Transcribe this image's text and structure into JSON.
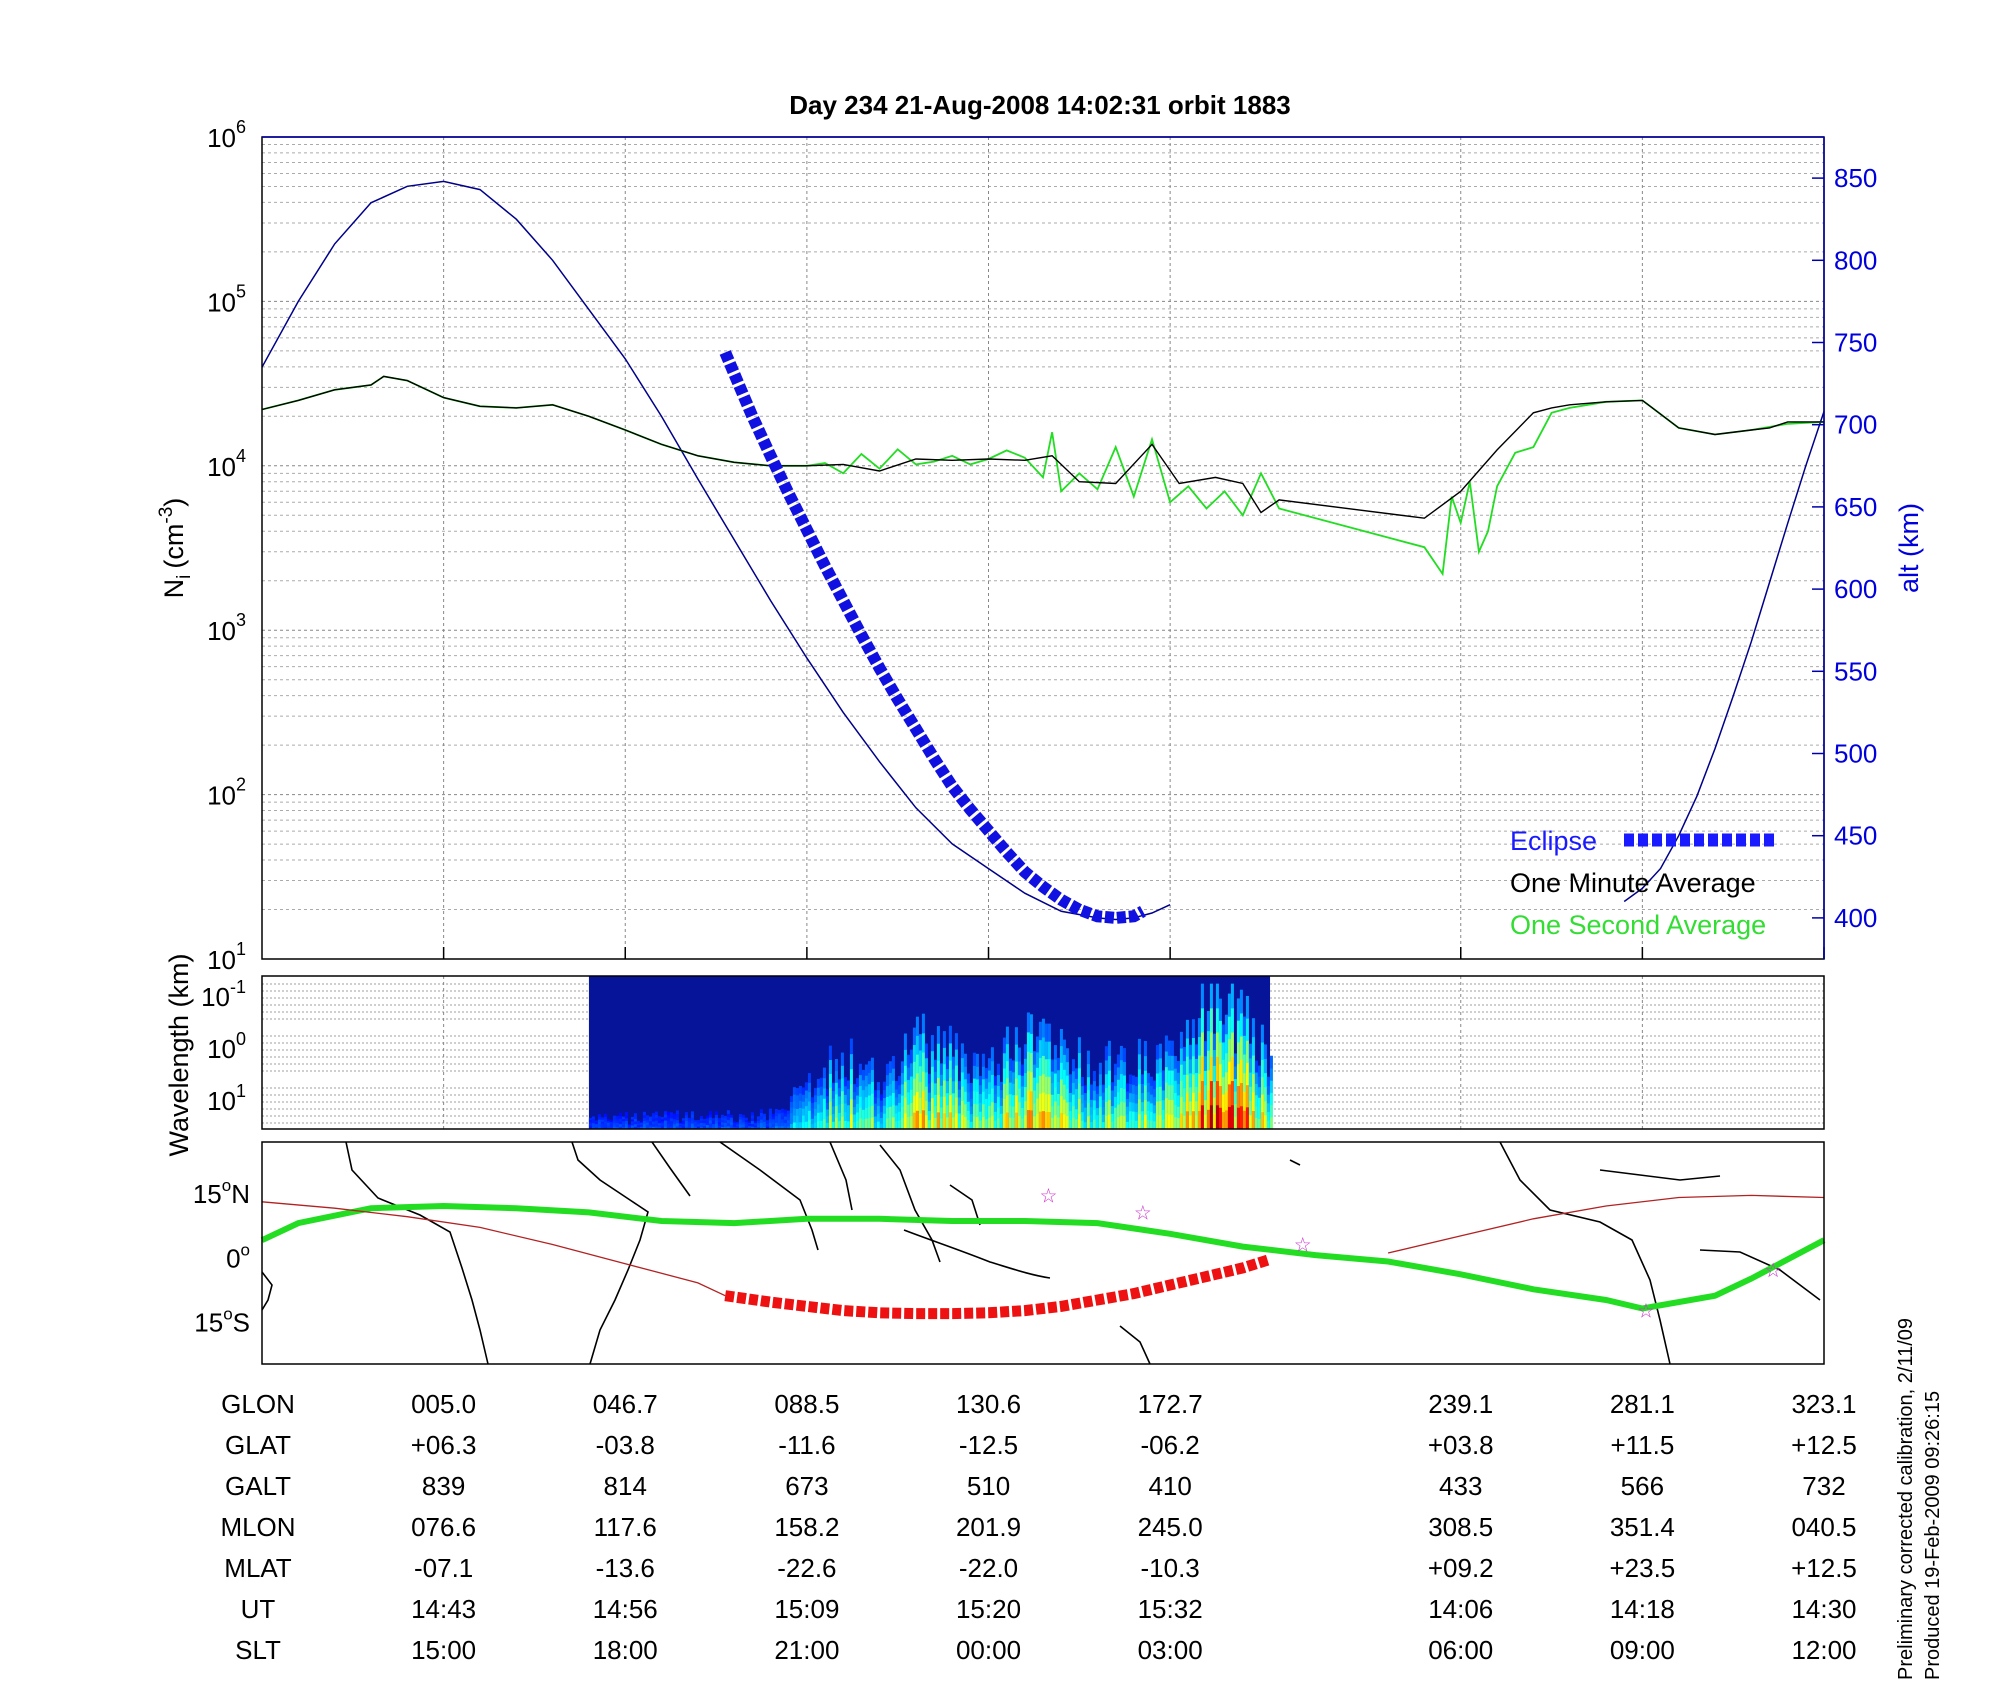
{
  "title": "Day 234  21-Aug-2008 14:02:31   orbit 1883",
  "colors": {
    "altitude": "#00008b",
    "eclipse": "#1010e0",
    "minute_avg": "#000000",
    "second_avg": "#22dd22",
    "legend_eclipse": "#1a1aff",
    "legend_second": "#33dd33",
    "track": "#22dd22",
    "track_eclipse": "#ee1111",
    "magnetic_line": "#b22222",
    "stars": "#cc33cc",
    "coast": "#000000",
    "grid": "#888888"
  },
  "chart_data": [
    {
      "type": "line",
      "ylabel": "N",
      "ylabel_sub": "i",
      "ylabel_unit": "(cm",
      "ylabel_exp": "-3",
      "ylabel_close": ")",
      "y_scale": "log",
      "ylim": [
        10,
        1000000
      ],
      "yticks": [
        {
          "base": "10",
          "exp": "1",
          "value": 10
        },
        {
          "base": "10",
          "exp": "2",
          "value": 100
        },
        {
          "base": "10",
          "exp": "3",
          "value": 1000
        },
        {
          "base": "10",
          "exp": "4",
          "value": 10000
        },
        {
          "base": "10",
          "exp": "5",
          "value": 100000
        },
        {
          "base": "10",
          "exp": "6",
          "value": 1000000
        }
      ],
      "x_unit": "minutes from 14:43 UT",
      "xlim": [
        -10,
        76
      ],
      "x_gridlines": [
        0,
        10,
        20,
        30,
        40,
        56,
        66,
        76
      ],
      "y2label": "alt (km)",
      "y2lim": [
        375,
        875
      ],
      "y2ticks": [
        400,
        450,
        500,
        550,
        600,
        650,
        700,
        750,
        800,
        850
      ],
      "grid": true,
      "legend_position": "bottom-right",
      "legend": {
        "eclipse": "Eclipse",
        "minute": "One Minute Average",
        "second": "One Second Average"
      },
      "series": [
        {
          "name": "One Minute Average",
          "role": "minute",
          "x": [
            -10,
            -8,
            -6,
            -4,
            -3.3,
            -2,
            0,
            2,
            4,
            6,
            8,
            10,
            12,
            14,
            16,
            18,
            20,
            22,
            24,
            26,
            28,
            30,
            32,
            33.5,
            35,
            37,
            39,
            40.5,
            42.5,
            44,
            45,
            46,
            48,
            49,
            51,
            52,
            54,
            56,
            58,
            60,
            61,
            62,
            64,
            66,
            68,
            70,
            72,
            73,
            74,
            76
          ],
          "y": [
            22000,
            25000,
            29000,
            31000,
            35000,
            33000,
            26000,
            23000,
            22500,
            23500,
            20000,
            16500,
            13500,
            11500,
            10500,
            10000,
            10000,
            10200,
            9300,
            11000,
            10800,
            11000,
            10800,
            11500,
            8000,
            7800,
            13500,
            7800,
            8500,
            7800,
            5200,
            6200,
            5300,
            6200,
            8000,
            5500,
            4800,
            7000,
            12500,
            21000,
            22500,
            23500,
            24500,
            25000,
            17000,
            15500,
            16500,
            17000,
            18500,
            18500
          ]
        },
        {
          "name": "One Second Average",
          "role": "second",
          "x": [
            -10,
            -8,
            -6,
            -4,
            -3.3,
            -2,
            0,
            2,
            4,
            6,
            8,
            10,
            12,
            14,
            16,
            18,
            20,
            21,
            22,
            23,
            24,
            25,
            26,
            27,
            28,
            29,
            30,
            31,
            32,
            33,
            33.5,
            34,
            35,
            36,
            37,
            38,
            39,
            40,
            41,
            42,
            43,
            44,
            45,
            46,
            47,
            48,
            49,
            50,
            51,
            52,
            54,
            55,
            55.5,
            56,
            56.5,
            57,
            57.5,
            58,
            59,
            60,
            61,
            62,
            64,
            66,
            68,
            70,
            72,
            74,
            76
          ],
          "y": [
            22000,
            25000,
            29000,
            31000,
            35000,
            33000,
            26000,
            23000,
            22500,
            23500,
            20000,
            16500,
            13500,
            11500,
            10500,
            10000,
            10000,
            10400,
            9000,
            11800,
            9600,
            12600,
            10200,
            10600,
            11500,
            10200,
            11000,
            12400,
            11200,
            8500,
            16000,
            7000,
            9000,
            7200,
            13000,
            6500,
            14500,
            6000,
            7500,
            5500,
            7000,
            5000,
            9000,
            5500,
            9500,
            5800,
            7000,
            8500,
            7200,
            5000,
            3200,
            2200,
            6500,
            4500,
            8000,
            3000,
            4000,
            7500,
            12000,
            13000,
            21000,
            22500,
            24500,
            25000,
            17000,
            15500,
            16500,
            18000,
            18500
          ]
        },
        {
          "name": "alt (km)",
          "role": "altitude",
          "axis": "right",
          "x": [
            -10,
            -8,
            -6,
            -4,
            -2,
            0,
            2,
            4,
            6,
            8,
            10,
            12,
            14,
            16,
            18,
            20,
            22,
            24,
            26,
            28,
            30,
            32,
            34,
            36,
            37,
            38,
            39,
            40,
            41,
            42,
            43,
            44,
            45,
            46,
            47,
            48,
            49,
            50,
            51,
            52,
            53,
            54,
            55,
            56,
            57,
            58,
            59,
            60,
            61,
            62,
            63,
            64,
            65,
            66,
            67,
            68,
            69,
            70,
            71,
            72,
            73,
            74,
            75,
            76
          ],
          "y": [
            735,
            775,
            810,
            835,
            845,
            848,
            843,
            825,
            800,
            770,
            740,
            705,
            667,
            630,
            593,
            558,
            525,
            495,
            467,
            445,
            430,
            415,
            404,
            400,
            399,
            400,
            403,
            408,
            null,
            null,
            null,
            null,
            null,
            null,
            null,
            null,
            null,
            null,
            null,
            null,
            null,
            null,
            null,
            null,
            null,
            null,
            null,
            null,
            null,
            null,
            null,
            null,
            410,
            418,
            430,
            450,
            474,
            503,
            535,
            568,
            604,
            640,
            675,
            708
          ]
        },
        {
          "name": "Eclipse",
          "role": "eclipse",
          "axis": "right",
          "x": [
            15.5,
            16,
            17,
            18,
            19,
            20,
            21,
            22,
            23,
            24,
            25,
            26,
            27,
            28,
            29,
            30,
            31,
            32,
            33,
            34,
            35,
            36,
            37,
            38,
            38.5
          ],
          "y": [
            744,
            731,
            705,
            681,
            658,
            636,
            614,
            593,
            572,
            552,
            533,
            515,
            497,
            480,
            466,
            453,
            440,
            428,
            419,
            411,
            405,
            401,
            400,
            401,
            404
          ]
        }
      ]
    },
    {
      "type": "heatmap",
      "ylabel": "Wavelength (km)",
      "yticks": [
        {
          "base": "10",
          "exp": "-1"
        },
        {
          "base": "10",
          "exp": "0"
        },
        {
          "base": "10",
          "exp": "1"
        }
      ],
      "x_start_min": 8,
      "x_end_min": 45.5,
      "colormap": "jet",
      "intensity_profile": {
        "x": [
          8,
          18,
          22,
          24,
          26,
          30,
          32,
          34,
          36,
          38,
          40,
          42,
          44,
          45.5
        ],
        "level": [
          0.05,
          0.08,
          0.5,
          0.35,
          0.6,
          0.45,
          0.6,
          0.55,
          0.4,
          0.5,
          0.45,
          0.85,
          0.7,
          0.6
        ]
      }
    },
    {
      "type": "line",
      "subtype": "map",
      "yticks": [
        {
          "value": 15,
          "label": "15",
          "hemi": "N"
        },
        {
          "value": 0,
          "label": "0",
          "hemi": ""
        },
        {
          "value": -15,
          "label": "15",
          "hemi": "S"
        }
      ],
      "ylim": [
        -25,
        27
      ],
      "series": [
        {
          "name": "track",
          "role": "track",
          "x": [
            -10,
            -8,
            -4,
            0,
            4,
            8,
            12,
            16,
            20,
            24,
            28,
            32,
            36,
            40,
            44,
            48,
            52,
            56,
            60,
            64,
            66,
            70,
            72,
            76
          ],
          "y": [
            4,
            8,
            11.5,
            12,
            11.5,
            10.5,
            8.5,
            8,
            9,
            9,
            8.5,
            8.5,
            8,
            5.5,
            2.5,
            0.5,
            -1,
            -4,
            -7.5,
            -10,
            -12,
            -9,
            -5,
            4
          ]
        },
        {
          "name": "eclipse track",
          "role": "track_eclipse",
          "x": [
            15.5,
            18,
            20,
            22,
            24,
            26,
            28,
            30,
            32,
            34,
            36,
            38,
            40,
            42,
            44,
            45.5
          ],
          "y": [
            -9,
            -10.5,
            -11.5,
            -12.5,
            -13,
            -13.2,
            -13.2,
            -13,
            -12.5,
            -11.5,
            -10,
            -8.5,
            -6.5,
            -4.5,
            -2.5,
            -0.5
          ]
        },
        {
          "name": "magnetic equator",
          "role": "magnetic_line",
          "x": [
            -10,
            -6,
            -2,
            2,
            6,
            10,
            14,
            15.5
          ],
          "y": [
            13,
            11.5,
            9.5,
            7,
            3,
            -1.5,
            -6,
            -9
          ]
        },
        {
          "name": "magnetic equator east",
          "role": "magnetic_line",
          "x": [
            52,
            56,
            60,
            64,
            68,
            72,
            76
          ],
          "y": [
            1,
            5,
            9,
            12,
            14,
            14.5,
            14
          ]
        }
      ],
      "stars": [
        {
          "x": 33.3,
          "y": 14.5
        },
        {
          "x": 38.5,
          "y": 10.5
        },
        {
          "x": 47.3,
          "y": 3
        },
        {
          "x": 66.2,
          "y": -12.5
        },
        {
          "x": 73.2,
          "y": -3
        }
      ]
    },
    {
      "type": "table",
      "row_labels": [
        "GLON",
        "GLAT",
        "GALT",
        "MLON",
        "MLAT",
        "UT",
        "SLT"
      ],
      "column_x_min": [
        0,
        10,
        20,
        30,
        40,
        56,
        66,
        76
      ],
      "columns": [
        [
          "005.0",
          "+06.3",
          "839",
          "076.6",
          "-07.1",
          "14:43",
          "15:00"
        ],
        [
          "046.7",
          "-03.8",
          "814",
          "117.6",
          "-13.6",
          "14:56",
          "18:00"
        ],
        [
          "088.5",
          "-11.6",
          "673",
          "158.2",
          "-22.6",
          "15:09",
          "21:00"
        ],
        [
          "130.6",
          "-12.5",
          "510",
          "201.9",
          "-22.0",
          "15:20",
          "00:00"
        ],
        [
          "172.7",
          "-06.2",
          "410",
          "245.0",
          "-10.3",
          "15:32",
          "03:00"
        ],
        [
          "239.1",
          "+03.8",
          "433",
          "308.5",
          "+09.2",
          "14:06",
          "06:00"
        ],
        [
          "281.1",
          "+11.5",
          "566",
          "351.4",
          "+23.5",
          "14:18",
          "09:00"
        ],
        [
          "323.1",
          "+12.5",
          "732",
          "040.5",
          "+12.5",
          "14:30",
          "12:00"
        ]
      ]
    }
  ],
  "footnote": {
    "line1": "Preliminary corrected calibration, 2/11/09",
    "line2": "Produced 19-Feb-2009 09:26:15"
  }
}
